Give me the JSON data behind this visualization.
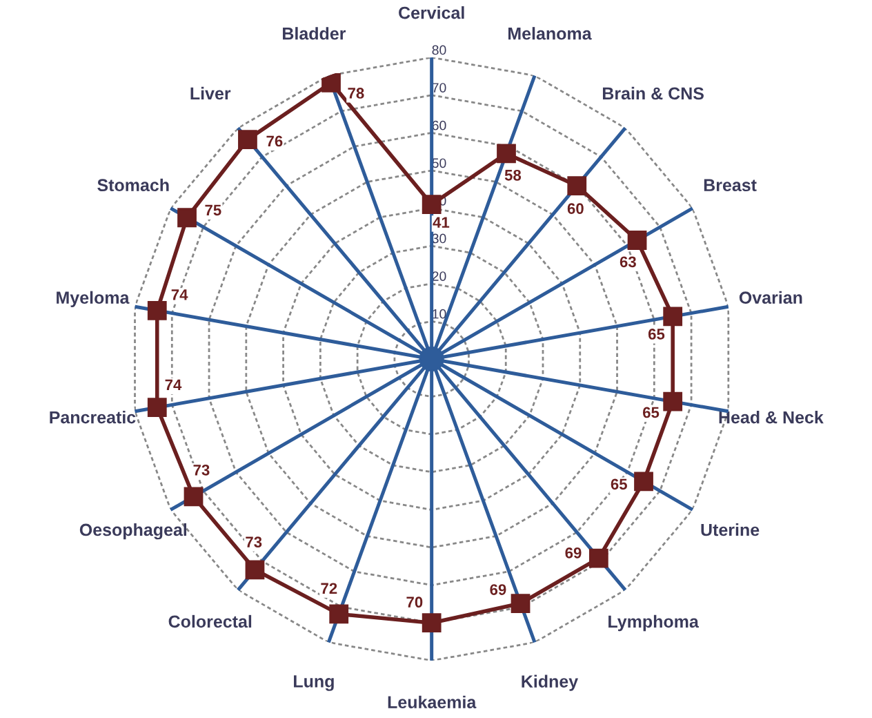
{
  "chart_data": {
    "type": "radar",
    "categories": [
      "Cervical",
      "Melanoma",
      "Brain & CNS",
      "Breast",
      "Ovarian",
      "Head & Neck",
      "Uterine",
      "Lymphoma",
      "Kidney",
      "Leukaemia",
      "Lung",
      "Colorectal",
      "Oesophageal",
      "Pancreatic",
      "Myeloma",
      "Stomach",
      "Liver",
      "Bladder"
    ],
    "series": [
      {
        "color": "#6b1f1f",
        "values": [
          41,
          58,
          60,
          63,
          65,
          65,
          65,
          69,
          69,
          70,
          72,
          73,
          73,
          74,
          74,
          75,
          76,
          78
        ]
      }
    ],
    "ylim": [
      0,
      80
    ],
    "yticks": [
      10,
      20,
      30,
      40,
      50,
      60,
      70,
      80
    ],
    "grid": true,
    "marker": "square",
    "line_style": "solid",
    "data_labels": true
  }
}
